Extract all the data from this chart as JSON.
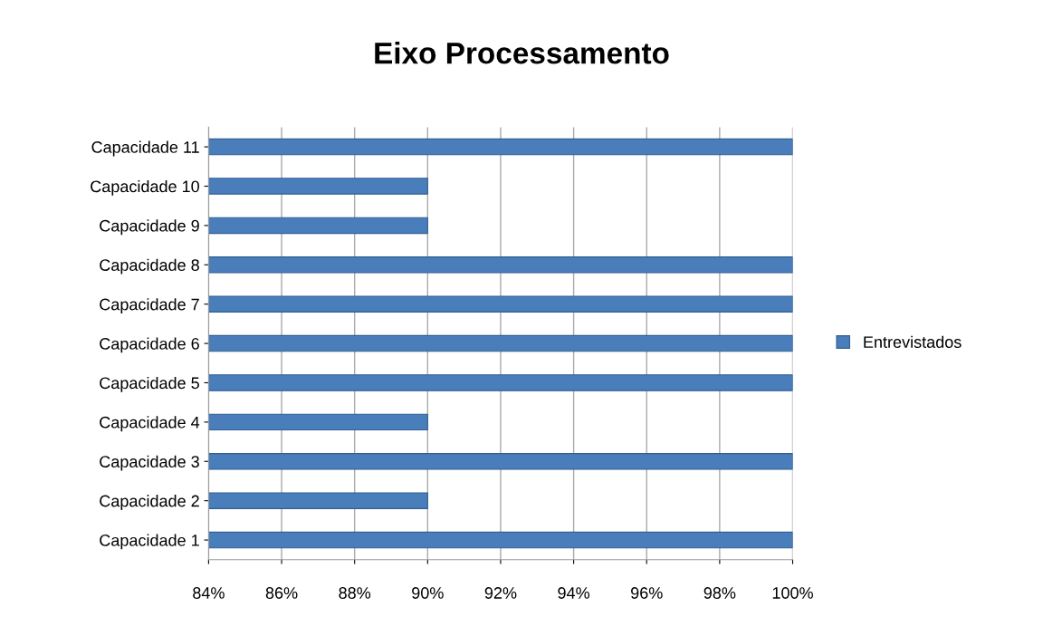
{
  "chart_data": {
    "type": "bar",
    "orientation": "horizontal",
    "title": "Eixo Processamento",
    "categories": [
      "Capacidade 11",
      "Capacidade 10",
      "Capacidade 9",
      "Capacidade 8",
      "Capacidade 7",
      "Capacidade 6",
      "Capacidade 5",
      "Capacidade 4",
      "Capacidade 3",
      "Capacidade 2",
      "Capacidade 1"
    ],
    "series": [
      {
        "name": "Entrevistados",
        "color": "#4a7ebb",
        "values": [
          100,
          90,
          90,
          100,
          100,
          100,
          100,
          90,
          100,
          90,
          100
        ]
      }
    ],
    "xlim": [
      84,
      100
    ],
    "xticks": [
      {
        "value": 84,
        "label": "84%"
      },
      {
        "value": 86,
        "label": "86%"
      },
      {
        "value": 88,
        "label": "88%"
      },
      {
        "value": 90,
        "label": "90%"
      },
      {
        "value": 92,
        "label": "92%"
      },
      {
        "value": 94,
        "label": "94%"
      },
      {
        "value": 96,
        "label": "96%"
      },
      {
        "value": 98,
        "label": "98%"
      },
      {
        "value": 100,
        "label": "100%"
      }
    ],
    "grid": "x",
    "legend": "right"
  }
}
